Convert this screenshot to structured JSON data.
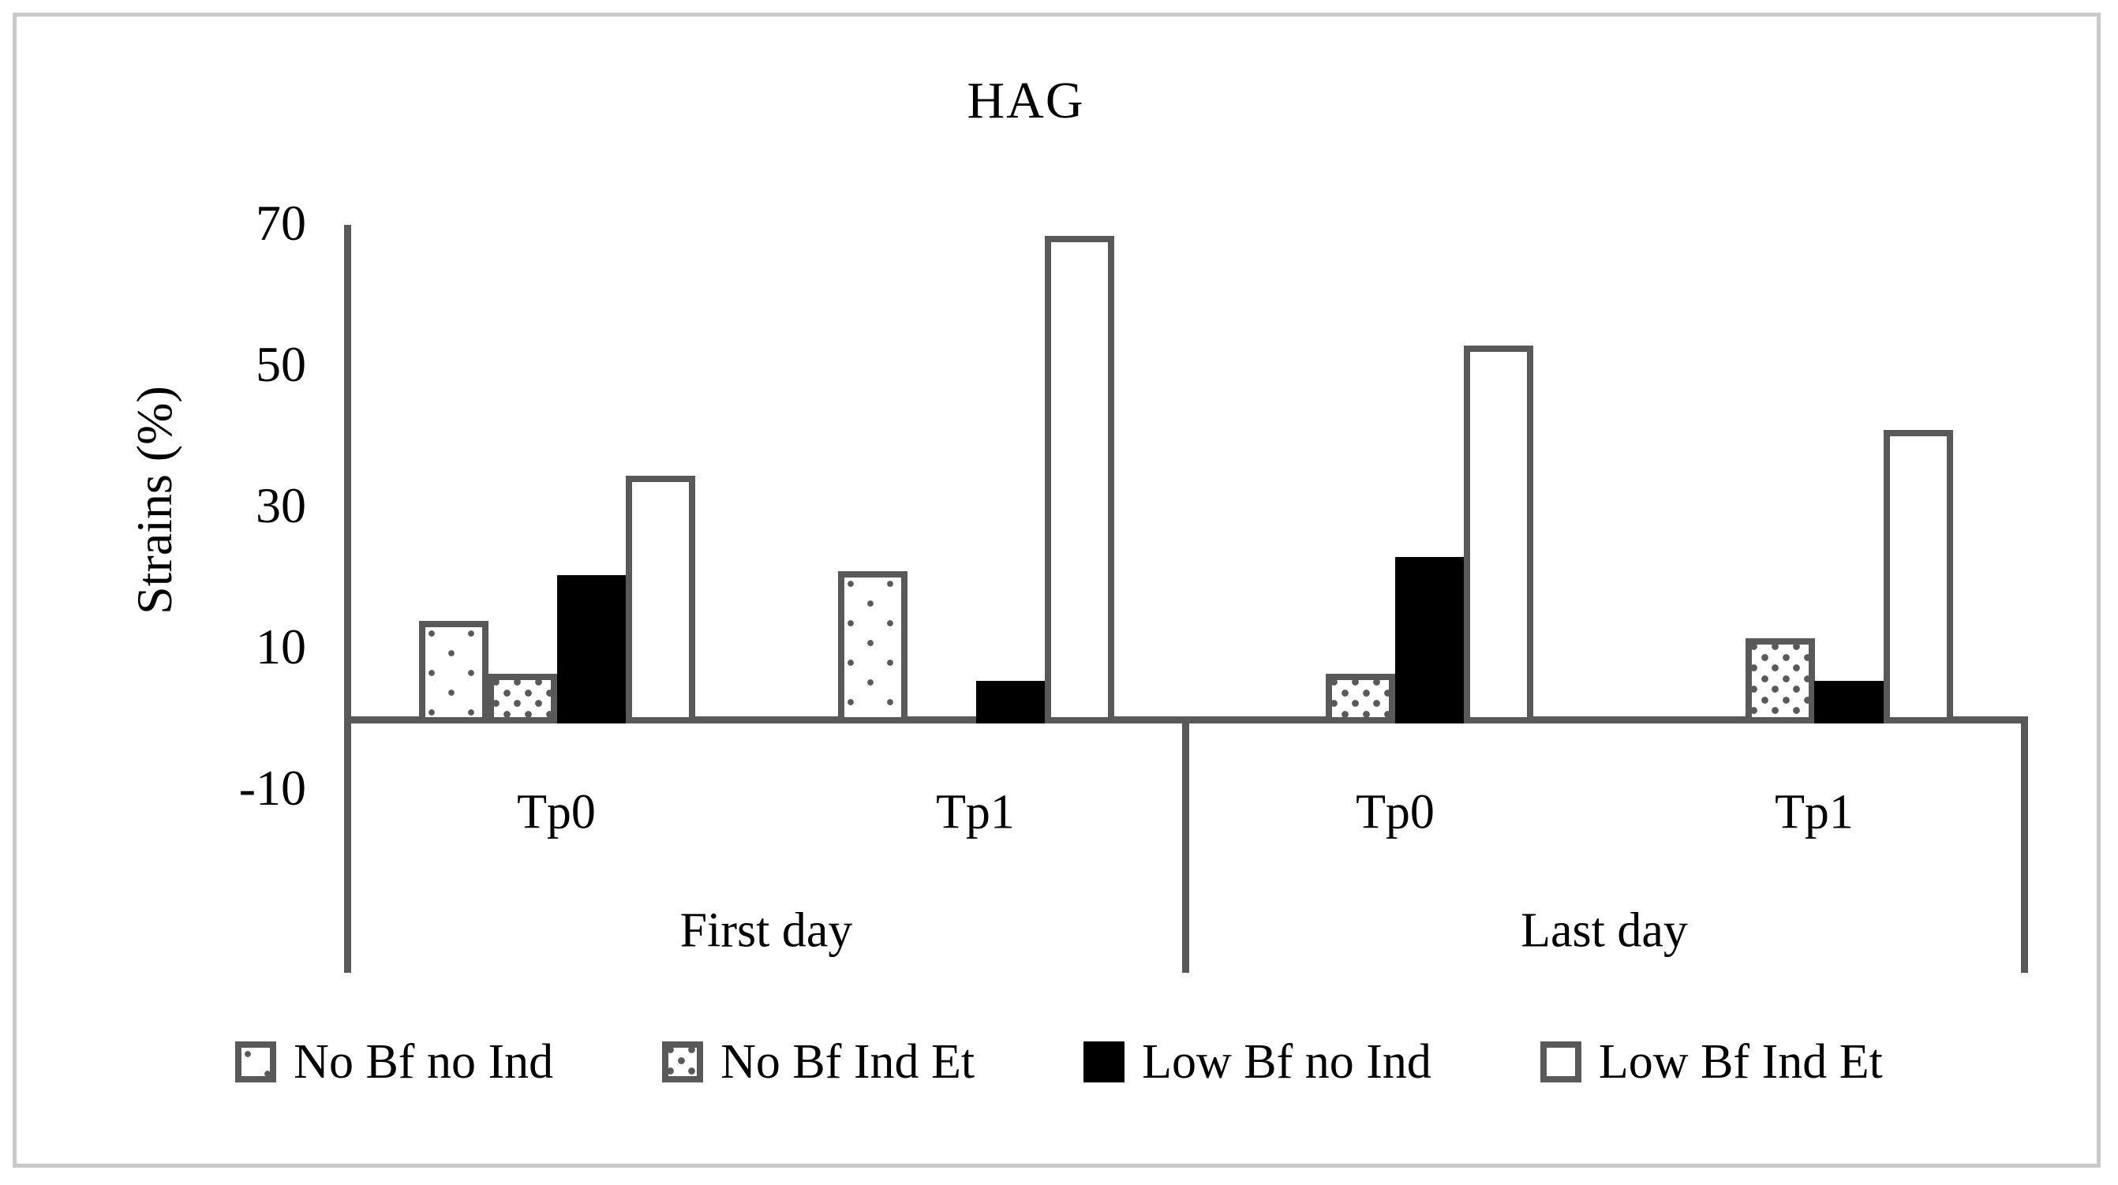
{
  "chart_data": {
    "type": "bar",
    "title": "HAG",
    "ylabel": "Strains (%)",
    "ylim": [
      -10,
      70
    ],
    "yticks": [
      70,
      50,
      30,
      10,
      -10
    ],
    "grid": false,
    "legend_position": "bottom",
    "categories": [
      "First day Tp0",
      "First day Tp1",
      "Last day Tp0",
      "Last day Tp1"
    ],
    "group_labels_level1": [
      "Tp0",
      "Tp1",
      "Tp0",
      "Tp1"
    ],
    "group_labels_level2": [
      "First day",
      "Last day"
    ],
    "series": [
      {
        "name": "No Bf no Ind",
        "pattern": "sparse-dots",
        "values": [
          14,
          21,
          0,
          0
        ]
      },
      {
        "name": "No Bf Ind Et",
        "pattern": "dense-dots",
        "values": [
          6.5,
          0,
          6.5,
          11.5
        ]
      },
      {
        "name": "Low Bf no Ind",
        "pattern": "solid-black",
        "values": [
          20.5,
          5.5,
          23,
          5.5
        ]
      },
      {
        "name": "Low Bf Ind Et",
        "pattern": "white",
        "values": [
          34.5,
          68.5,
          53,
          41
        ]
      }
    ],
    "colors": {
      "line_gray": "#595959",
      "black": "#000000",
      "white": "#ffffff",
      "frame_gray": "#c9c9c9"
    }
  }
}
